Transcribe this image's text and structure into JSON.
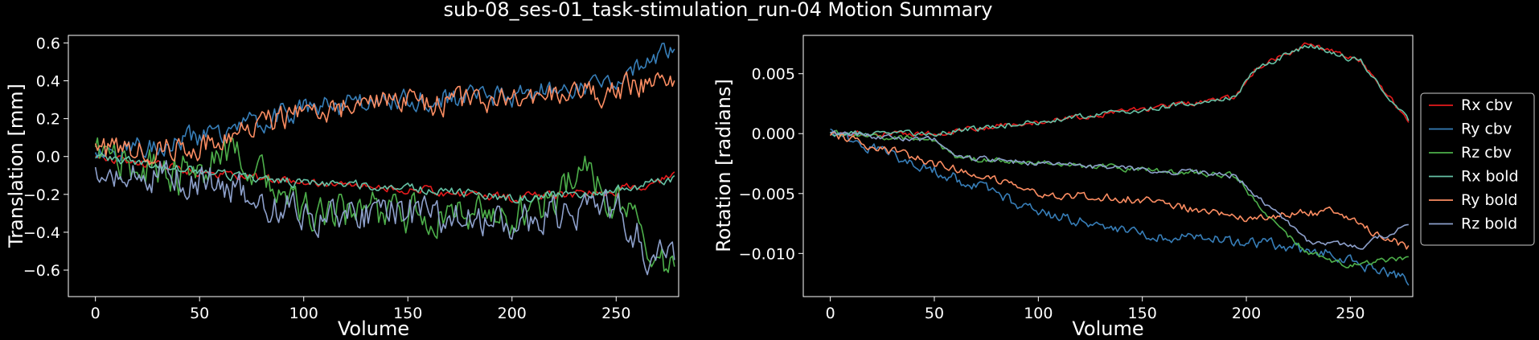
{
  "figure": {
    "title": "sub-08_ses-01_task-stimulation_run-04 Motion Summary",
    "background": "#000000",
    "foreground": "#ffffff"
  },
  "chart_data": [
    {
      "type": "line",
      "xlabel": "Volume",
      "ylabel": "Translation [mm]",
      "xlim": [
        -13,
        280
      ],
      "ylim": [
        -0.74,
        0.64
      ],
      "xticks": [
        0,
        50,
        100,
        150,
        200,
        250
      ],
      "yticks": [
        -0.6,
        -0.4,
        -0.2,
        0.0,
        0.2,
        0.4,
        0.6
      ],
      "ytick_labels": [
        "−0.6",
        "−0.4",
        "−0.2",
        "0.0",
        "0.2",
        "0.4",
        "0.6"
      ],
      "grid": false,
      "n_volumes": 279,
      "series": [
        {
          "color": "#e41a1c",
          "noise": 0.02,
          "keypoints": [
            [
              0,
              0.0
            ],
            [
              50,
              -0.08
            ],
            [
              100,
              -0.14
            ],
            [
              150,
              -0.17
            ],
            [
              200,
              -0.22
            ],
            [
              250,
              -0.18
            ],
            [
              278,
              -0.11
            ]
          ]
        },
        {
          "color": "#377eb8",
          "noise": 0.05,
          "keypoints": [
            [
              0,
              0.02
            ],
            [
              50,
              0.1
            ],
            [
              100,
              0.25
            ],
            [
              150,
              0.3
            ],
            [
              200,
              0.32
            ],
            [
              250,
              0.4
            ],
            [
              278,
              0.58
            ]
          ]
        },
        {
          "color": "#4daf4a",
          "noise": 0.09,
          "keypoints": [
            [
              0,
              0.0
            ],
            [
              40,
              -0.1
            ],
            [
              70,
              0.0
            ],
            [
              100,
              -0.3
            ],
            [
              150,
              -0.3
            ],
            [
              200,
              -0.32
            ],
            [
              235,
              -0.1
            ],
            [
              260,
              -0.35
            ],
            [
              278,
              -0.6
            ]
          ]
        },
        {
          "color": "#66c2a5",
          "noise": 0.02,
          "keypoints": [
            [
              0,
              0.0
            ],
            [
              50,
              -0.08
            ],
            [
              100,
              -0.14
            ],
            [
              150,
              -0.16
            ],
            [
              200,
              -0.22
            ],
            [
              250,
              -0.18
            ],
            [
              278,
              -0.12
            ]
          ]
        },
        {
          "color": "#fc8d62",
          "noise": 0.06,
          "keypoints": [
            [
              0,
              0.02
            ],
            [
              50,
              0.06
            ],
            [
              100,
              0.25
            ],
            [
              150,
              0.28
            ],
            [
              200,
              0.3
            ],
            [
              250,
              0.35
            ],
            [
              278,
              0.42
            ]
          ]
        },
        {
          "color": "#8da0cb",
          "noise": 0.08,
          "keypoints": [
            [
              0,
              -0.05
            ],
            [
              50,
              -0.12
            ],
            [
              100,
              -0.3
            ],
            [
              150,
              -0.3
            ],
            [
              200,
              -0.35
            ],
            [
              250,
              -0.25
            ],
            [
              265,
              -0.5
            ],
            [
              278,
              -0.55
            ]
          ]
        }
      ]
    },
    {
      "type": "line",
      "xlabel": "Volume",
      "ylabel": "Rotation [radians]",
      "xlim": [
        -13,
        280
      ],
      "ylim": [
        -0.0136,
        0.0082
      ],
      "xticks": [
        0,
        50,
        100,
        150,
        200,
        250
      ],
      "yticks": [
        -0.01,
        -0.005,
        0.0,
        0.005
      ],
      "ytick_labels": [
        "−0.010",
        "−0.005",
        "0.000",
        "0.005"
      ],
      "grid": false,
      "n_volumes": 279,
      "legend": {
        "placement": "outside-right",
        "entries": [
          "Rx cbv",
          "Ry cbv",
          "Rz cbv",
          "Rx bold",
          "Ry bold",
          "Rz bold"
        ]
      },
      "series": [
        {
          "name": "Rx cbv",
          "color": "#e41a1c",
          "noise": 0.0002,
          "keypoints": [
            [
              0,
              0.0
            ],
            [
              50,
              0.0
            ],
            [
              100,
              0.001
            ],
            [
              150,
              0.002
            ],
            [
              195,
              0.003
            ],
            [
              205,
              0.0055
            ],
            [
              230,
              0.0075
            ],
            [
              255,
              0.006
            ],
            [
              278,
              0.001
            ]
          ]
        },
        {
          "name": "Ry cbv",
          "color": "#377eb8",
          "noise": 0.0004,
          "keypoints": [
            [
              0,
              0.0
            ],
            [
              50,
              -0.003
            ],
            [
              100,
              -0.0065
            ],
            [
              150,
              -0.0085
            ],
            [
              200,
              -0.009
            ],
            [
              240,
              -0.01
            ],
            [
              278,
              -0.0122
            ]
          ]
        },
        {
          "name": "Rz cbv",
          "color": "#4daf4a",
          "noise": 0.0002,
          "keypoints": [
            [
              0,
              0.0
            ],
            [
              50,
              -0.0005
            ],
            [
              60,
              -0.002
            ],
            [
              150,
              -0.003
            ],
            [
              195,
              -0.0035
            ],
            [
              210,
              -0.007
            ],
            [
              230,
              -0.01
            ],
            [
              250,
              -0.011
            ],
            [
              278,
              -0.0103
            ]
          ]
        },
        {
          "name": "Rx bold",
          "color": "#66c2a5",
          "noise": 0.0002,
          "keypoints": [
            [
              0,
              0.0
            ],
            [
              50,
              0.0
            ],
            [
              100,
              0.001
            ],
            [
              150,
              0.002
            ],
            [
              195,
              0.003
            ],
            [
              205,
              0.0055
            ],
            [
              230,
              0.0074
            ],
            [
              255,
              0.006
            ],
            [
              278,
              0.001
            ]
          ]
        },
        {
          "name": "Ry bold",
          "color": "#fc8d62",
          "noise": 0.0003,
          "keypoints": [
            [
              0,
              0.0
            ],
            [
              50,
              -0.0025
            ],
            [
              100,
              -0.005
            ],
            [
              150,
              -0.0055
            ],
            [
              200,
              -0.007
            ],
            [
              240,
              -0.0065
            ],
            [
              278,
              -0.0095
            ]
          ]
        },
        {
          "name": "Rz bold",
          "color": "#8da0cb",
          "noise": 0.0002,
          "keypoints": [
            [
              0,
              0.0
            ],
            [
              50,
              -0.0005
            ],
            [
              60,
              -0.002
            ],
            [
              150,
              -0.003
            ],
            [
              195,
              -0.0035
            ],
            [
              210,
              -0.006
            ],
            [
              230,
              -0.009
            ],
            [
              255,
              -0.0095
            ],
            [
              278,
              -0.0075
            ]
          ]
        }
      ]
    }
  ]
}
